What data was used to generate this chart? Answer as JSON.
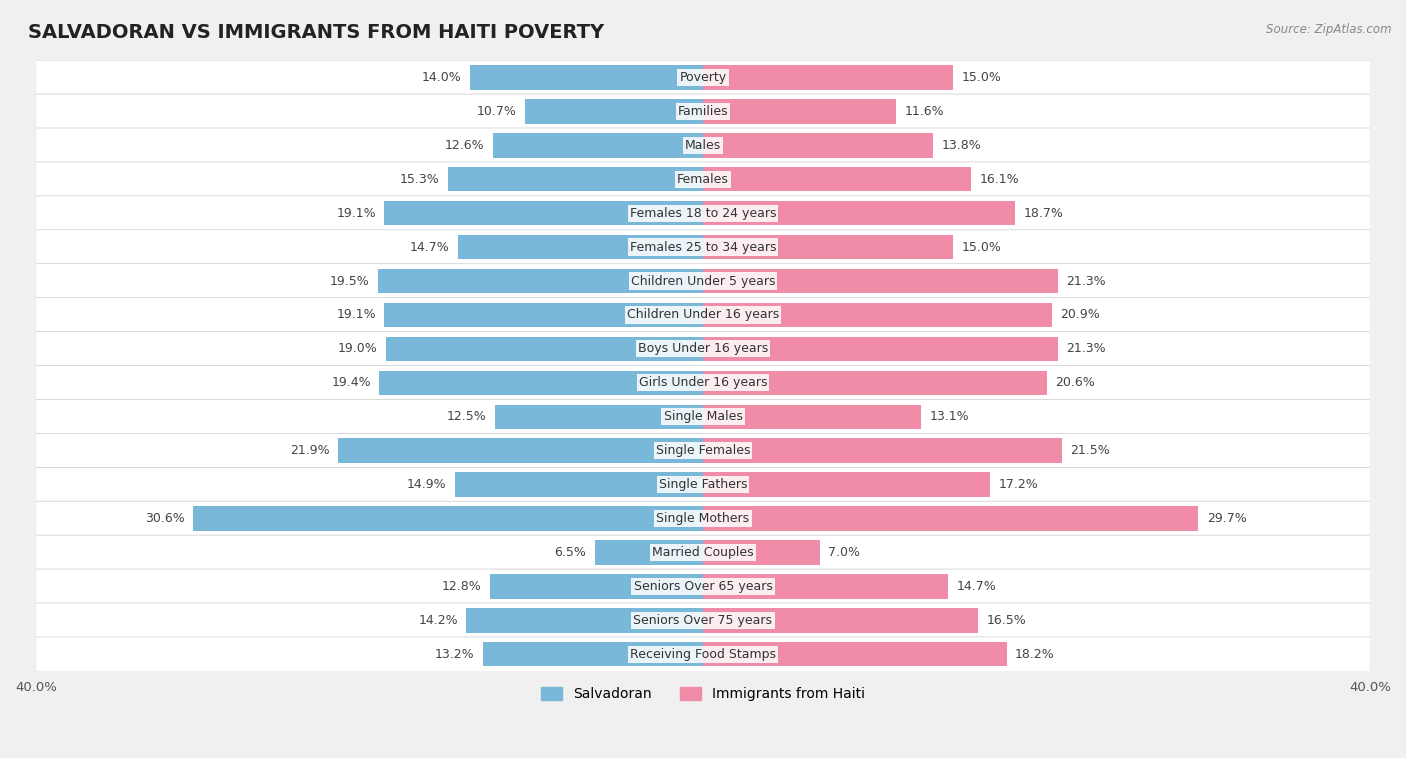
{
  "title": "SALVADORAN VS IMMIGRANTS FROM HAITI POVERTY",
  "source": "Source: ZipAtlas.com",
  "categories": [
    "Poverty",
    "Families",
    "Males",
    "Females",
    "Females 18 to 24 years",
    "Females 25 to 34 years",
    "Children Under 5 years",
    "Children Under 16 years",
    "Boys Under 16 years",
    "Girls Under 16 years",
    "Single Males",
    "Single Females",
    "Single Fathers",
    "Single Mothers",
    "Married Couples",
    "Seniors Over 65 years",
    "Seniors Over 75 years",
    "Receiving Food Stamps"
  ],
  "salvadoran": [
    14.0,
    10.7,
    12.6,
    15.3,
    19.1,
    14.7,
    19.5,
    19.1,
    19.0,
    19.4,
    12.5,
    21.9,
    14.9,
    30.6,
    6.5,
    12.8,
    14.2,
    13.2
  ],
  "haiti": [
    15.0,
    11.6,
    13.8,
    16.1,
    18.7,
    15.0,
    21.3,
    20.9,
    21.3,
    20.6,
    13.1,
    21.5,
    17.2,
    29.7,
    7.0,
    14.7,
    16.5,
    18.2
  ],
  "salvadoran_color": "#7ab8d9",
  "haiti_color": "#f08ca8",
  "salvadoran_label": "Salvadoran",
  "haiti_label": "Immigrants from Haiti",
  "x_max": 40.0,
  "background_color": "#f0f0f0",
  "row_bg_color": "#ffffff",
  "bar_height": 0.72,
  "title_fontsize": 14,
  "label_fontsize": 9,
  "tick_fontsize": 9.5,
  "source_fontsize": 8.5
}
